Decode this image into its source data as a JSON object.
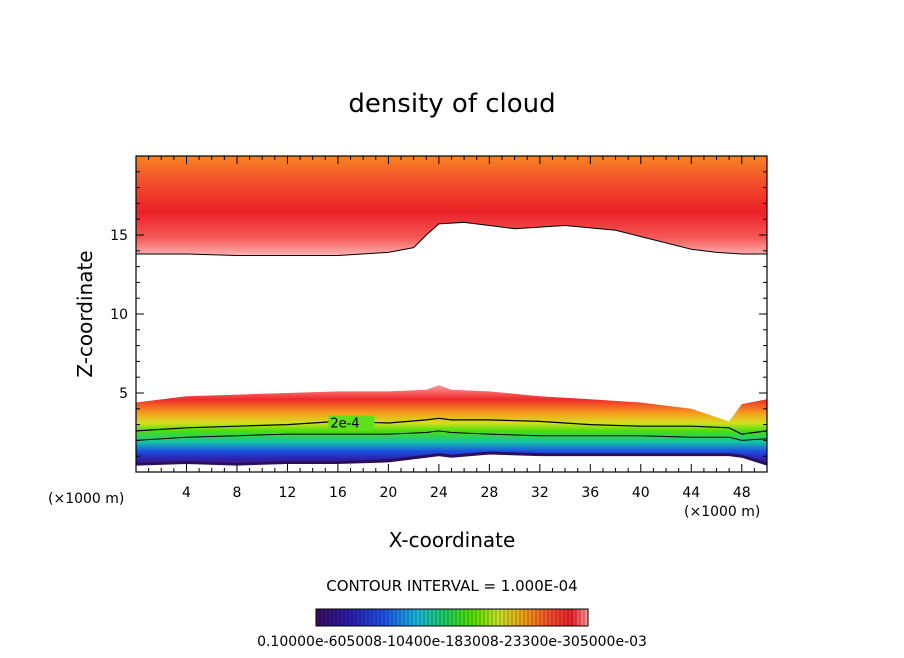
{
  "chart_data": {
    "type": "contour",
    "title": "density of cloud",
    "xlabel": "X-coordinate",
    "ylabel": "Z-coordinate",
    "x_unit_left": "(×1000 m)",
    "x_unit_right": "(×1000 m)",
    "xlim": [
      0,
      50
    ],
    "ylim": [
      0,
      20
    ],
    "x_ticks": [
      4,
      8,
      12,
      16,
      20,
      24,
      28,
      32,
      36,
      40,
      44,
      48
    ],
    "x_tick_labels": [
      "4",
      "8",
      "12",
      "16",
      "20",
      "24",
      "28",
      "32",
      "36",
      "40",
      "44",
      "48"
    ],
    "y_ticks": [
      5,
      10,
      15
    ],
    "y_tick_labels": [
      "5",
      "10",
      "15"
    ],
    "contour_interval_text": "CONTOUR INTERVAL = 1.000E-04",
    "contour_interval": 0.0001,
    "contour_labels": [
      {
        "text": "2e-4",
        "x": 15.4,
        "z": 3.0
      }
    ],
    "colorbar_text": "0.10000e-605008-10400e-183008-23300e-305000e-03",
    "colorbar_range": [
      0.0,
      0.00035
    ],
    "colormap": [
      "#3a0d5e",
      "#2a1ca8",
      "#1e52e6",
      "#19b7d8",
      "#1fce5b",
      "#58e000",
      "#c7e22a",
      "#f0a418",
      "#f44b2c",
      "#e9242a",
      "#ff9c9c"
    ],
    "lower_band": {
      "description_values": "cloud density in the lower layer, roughly 1 to 5 km",
      "x": [
        0,
        4,
        8,
        12,
        16,
        20,
        23,
        24,
        25,
        28,
        32,
        36,
        40,
        44,
        47,
        48,
        50
      ],
      "top": [
        4.4,
        4.8,
        4.9,
        5.0,
        5.1,
        5.1,
        5.2,
        5.5,
        5.2,
        5.1,
        4.8,
        4.6,
        4.4,
        4.0,
        3.2,
        4.3,
        4.6
      ],
      "contour_2e4": [
        2.6,
        2.8,
        2.9,
        3.0,
        3.2,
        3.1,
        3.3,
        3.4,
        3.3,
        3.3,
        3.2,
        3.0,
        2.9,
        2.9,
        2.8,
        2.4,
        2.6
      ],
      "contour_1e4": [
        2.0,
        2.2,
        2.3,
        2.4,
        2.4,
        2.4,
        2.5,
        2.6,
        2.5,
        2.4,
        2.3,
        2.3,
        2.3,
        2.2,
        2.2,
        2.0,
        2.1
      ],
      "bottom": [
        0.5,
        0.6,
        0.5,
        0.6,
        0.6,
        0.7,
        1.0,
        1.1,
        1.0,
        1.2,
        1.1,
        1.1,
        1.1,
        1.1,
        1.1,
        1.0,
        0.5
      ]
    },
    "upper_band": {
      "description_values": "cloud density in the upper layer, from about 14 km to the top",
      "x": [
        0,
        4,
        8,
        12,
        16,
        20,
        22,
        23,
        24,
        26,
        28,
        30,
        34,
        38,
        40,
        42,
        44,
        46,
        48,
        50
      ],
      "bottom": [
        13.8,
        13.8,
        13.7,
        13.7,
        13.7,
        13.9,
        14.2,
        15.0,
        15.7,
        15.8,
        15.6,
        15.4,
        15.6,
        15.3,
        14.9,
        14.5,
        14.1,
        13.9,
        13.8,
        13.8
      ]
    }
  }
}
